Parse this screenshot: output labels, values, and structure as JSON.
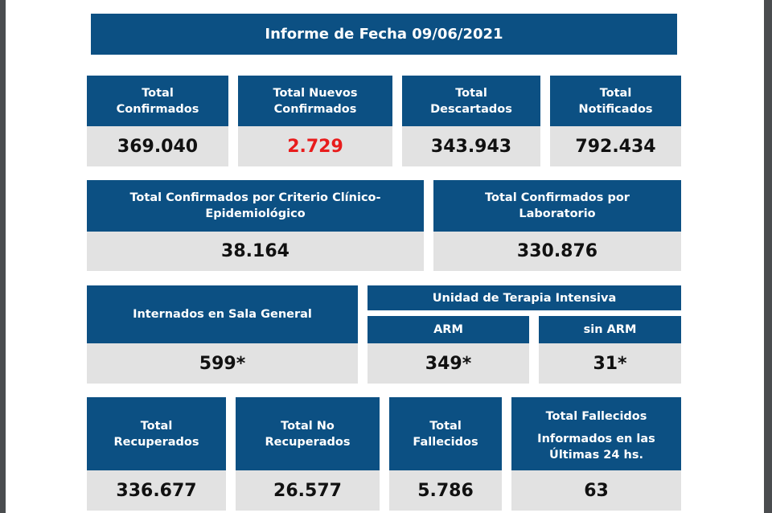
{
  "title": "Informe de Fecha 09/06/2021",
  "row1": [
    {
      "label": [
        "Total",
        "Confirmados"
      ],
      "value": "369.040"
    },
    {
      "label": [
        "Total Nuevos",
        "Confirmados"
      ],
      "value": "2.729"
    },
    {
      "label": [
        "Total",
        "Descartados"
      ],
      "value": "343.943"
    },
    {
      "label": [
        "Total",
        "Notificados"
      ],
      "value": "792.434"
    }
  ],
  "row2": [
    {
      "label": [
        "Total Confirmados por Criterio Clínico-",
        "Epidemiológico"
      ],
      "value": "38.164"
    },
    {
      "label": [
        "Total Confirmados por",
        "Laboratorio"
      ],
      "value": "330.876"
    }
  ],
  "row3": {
    "internados": {
      "label": "Internados en Sala General",
      "value": "599*"
    },
    "uti": {
      "label": "Unidad de Terapia Intensiva",
      "arm": {
        "label": "ARM",
        "value": "349*"
      },
      "sin_arm": {
        "label": "sin ARM",
        "value": "31*"
      }
    }
  },
  "row4": [
    {
      "label": [
        "Total",
        "Recuperados"
      ],
      "value": "336.677"
    },
    {
      "label": [
        "Total No",
        "Recuperados"
      ],
      "value": "26.577"
    },
    {
      "label": [
        "Total",
        "Fallecidos"
      ],
      "value": "5.786"
    },
    {
      "label": [
        "Total Fallecidos",
        "Informados en las",
        "Últimas 24 hs."
      ],
      "value": "63"
    }
  ],
  "colors": {
    "header": "#0c5083",
    "value_bg": "#e2e2e2",
    "highlight": "#e81c1c"
  }
}
